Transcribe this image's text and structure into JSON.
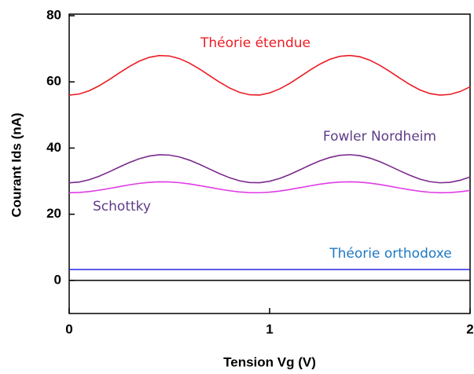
{
  "chart_data": {
    "type": "line",
    "xlabel": "Tension Vg (V)",
    "ylabel": "Courant Ids (nA)",
    "xlim": [
      0,
      2
    ],
    "xticks": [
      0,
      1,
      2
    ],
    "ylim": [
      -10,
      80
    ],
    "yticks": [
      0,
      20,
      40,
      60,
      80
    ],
    "hline": 0,
    "hline_color": "#000000",
    "x": [
      0,
      0.05,
      0.1,
      0.15,
      0.2,
      0.25,
      0.3,
      0.35,
      0.4,
      0.45,
      0.5,
      0.55,
      0.6,
      0.65,
      0.7,
      0.75,
      0.8,
      0.85,
      0.9,
      0.95,
      1,
      1.05,
      1.1,
      1.15,
      1.2,
      1.25,
      1.3,
      1.35,
      1.4,
      1.45,
      1.5,
      1.55,
      1.6,
      1.65,
      1.7,
      1.75,
      1.8,
      1.85,
      1.9,
      1.95,
      2
    ],
    "series": [
      {
        "name": "Théorie étendue",
        "color": "#ec1c24",
        "label_color": "#ec1c24",
        "values": [
          56,
          56.34,
          57.32,
          58.83,
          60.69,
          62.71,
          64.64,
          66.28,
          67.43,
          67.97,
          67.83,
          67.04,
          65.68,
          63.9,
          61.9,
          59.91,
          58.17,
          56.85,
          56.11,
          56.04,
          56.66,
          57.87,
          59.53,
          61.49,
          63.5,
          65.34,
          66.81,
          67.72,
          68,
          67.6,
          66.56,
          65,
          63.12,
          61.1,
          59.19,
          57.56,
          56.47,
          56.01,
          56.22,
          57.07,
          58.49
        ]
      },
      {
        "name": "Fowler Nordheim",
        "color": "#7b2a8c",
        "label_color": "#5e3c88",
        "values": [
          29.5,
          29.74,
          30.43,
          31.5,
          32.82,
          34.25,
          35.62,
          36.78,
          37.6,
          37.98,
          37.88,
          37.32,
          36.35,
          35.1,
          33.68,
          32.27,
          31.04,
          30.1,
          29.58,
          29.53,
          29.97,
          30.82,
          32,
          33.39,
          34.82,
          36.12,
          37.15,
          37.8,
          38,
          37.71,
          36.98,
          35.88,
          34.54,
          33.11,
          31.76,
          30.61,
          29.83,
          29.51,
          29.65,
          30.26,
          31.26
        ]
      },
      {
        "name": "Schottky",
        "color": "#e03ce6",
        "label_color": "#5e3c88",
        "values": [
          26.5,
          26.59,
          26.86,
          27.28,
          27.79,
          28.34,
          28.88,
          29.33,
          29.64,
          29.79,
          29.75,
          29.54,
          29.16,
          28.67,
          28.12,
          27.58,
          27.1,
          26.73,
          26.53,
          26.51,
          26.68,
          27.01,
          27.47,
          28.01,
          28.56,
          29.07,
          29.47,
          29.72,
          29.8,
          29.69,
          29.4,
          28.98,
          28.46,
          27.9,
          27.38,
          26.93,
          26.63,
          26.5,
          26.56,
          26.8,
          27.18
        ]
      },
      {
        "name": "Théorie orthodoxe",
        "color": "#2626e6",
        "label_color": "#1f78c2",
        "values": [
          3.3,
          3.3,
          3.3,
          3.3,
          3.3,
          3.3,
          3.3,
          3.3,
          3.3,
          3.3,
          3.3,
          3.3,
          3.3,
          3.3,
          3.3,
          3.3,
          3.3,
          3.3,
          3.3,
          3.3,
          3.3,
          3.3,
          3.3,
          3.3,
          3.3,
          3.3,
          3.3,
          3.3,
          3.3,
          3.3,
          3.3,
          3.3,
          3.3,
          3.3,
          3.3,
          3.3,
          3.3,
          3.3,
          3.3,
          3.3,
          3.3
        ]
      }
    ]
  }
}
